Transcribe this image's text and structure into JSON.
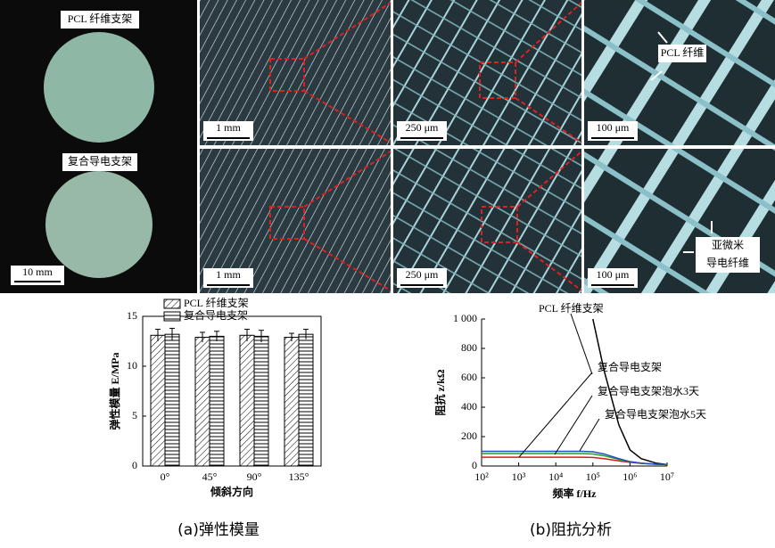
{
  "figure": {
    "left_labels": [
      "PCL 纤维支架",
      "复合导电支架"
    ],
    "left_scale": "10 mm",
    "scales_row1": [
      "1 mm",
      "250 μm",
      "100 μm"
    ],
    "scales_row2": [
      "1 mm",
      "250 μm",
      "100 μm"
    ],
    "annot_top": "PCL 纤维",
    "annot_bottom": [
      "亚微米",
      "导电纤维"
    ]
  },
  "chart_data": [
    {
      "type": "bar",
      "categories": [
        "0°",
        "45°",
        "90°",
        "135°"
      ],
      "series": [
        {
          "name": "PCL 纤维支架",
          "color": "#000000",
          "values": [
            13.1,
            12.9,
            13.1,
            12.9
          ],
          "errors": [
            0.6,
            0.5,
            0.6,
            0.4
          ]
        },
        {
          "name": "复合导电支架",
          "color": "#000000",
          "values": [
            13.2,
            13.0,
            13.0,
            13.2
          ],
          "errors": [
            0.6,
            0.5,
            0.6,
            0.5
          ]
        }
      ],
      "ylim": [
        0,
        15
      ],
      "yticks": [
        0,
        5,
        10,
        15
      ],
      "y_label": "弹性模量 E/MPa",
      "x_label": "倾斜方向",
      "caption": "(a)弹性模量"
    },
    {
      "type": "line",
      "log_x": true,
      "x": [
        100,
        1000,
        10000,
        50000,
        100000,
        200000,
        500000,
        1000000,
        2000000,
        5000000,
        10000000
      ],
      "series": [
        {
          "name": "PCL 纤维支架",
          "color": "#000000",
          "values": [
            null,
            null,
            null,
            null,
            1000,
            650,
            280,
            110,
            50,
            20,
            10
          ]
        },
        {
          "name": "复合导电支架",
          "color": "#d02020",
          "values": [
            60,
            60,
            60,
            60,
            58,
            50,
            35,
            25,
            18,
            12,
            10
          ]
        },
        {
          "name": "复合导电支架泡水3天",
          "color": "#20a020",
          "values": [
            85,
            85,
            85,
            85,
            82,
            70,
            45,
            28,
            18,
            12,
            10
          ]
        },
        {
          "name": "复合导电支架泡水5天",
          "color": "#2050c0",
          "values": [
            100,
            100,
            100,
            100,
            97,
            82,
            50,
            30,
            20,
            12,
            10
          ]
        }
      ],
      "xlim": [
        100,
        10000000
      ],
      "xticks": [
        {
          "value": 100,
          "label": "10²"
        },
        {
          "value": 1000,
          "label": "10³"
        },
        {
          "value": 10000,
          "label": "10⁴"
        },
        {
          "value": 100000,
          "label": "10⁵"
        },
        {
          "value": 1000000,
          "label": "10⁶"
        },
        {
          "value": 10000000,
          "label": "10⁷"
        }
      ],
      "ylim": [
        0,
        1000
      ],
      "yticks": [
        0,
        200,
        400,
        600,
        800,
        {
          "value": 1000,
          "label": "1 000"
        }
      ],
      "y_label": "阻抗 z/kΩ",
      "x_label": "频率 f/Hz",
      "caption": "(b)阻抗分析"
    }
  ]
}
